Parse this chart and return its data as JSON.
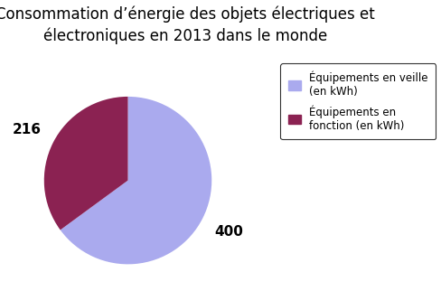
{
  "title": "Consommation d’énergie des objets électriques et\nélectroniques en 2013 dans le monde",
  "values": [
    400,
    216
  ],
  "colors": [
    "#aaaaee",
    "#8b2252"
  ],
  "legend_labels": [
    "Équipements en veille\n(en kWh)",
    "Équipements en\nfonction (en kWh)"
  ],
  "data_labels": [
    "400",
    "216"
  ],
  "background_color": "#c8c8c8",
  "startangle": 90,
  "title_fontsize": 12,
  "label_fontsize": 11
}
